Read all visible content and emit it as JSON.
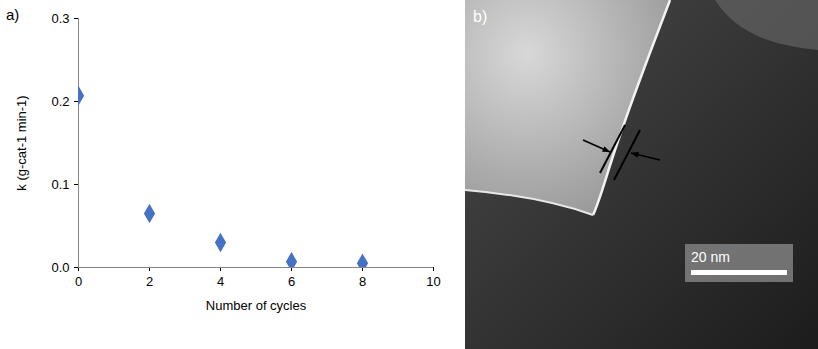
{
  "chart_data": {
    "type": "scatter",
    "title": "a)",
    "x_label": "Number of cycles",
    "y_label": "k (g-cat-1 min-1)",
    "x": [
      0,
      2,
      4,
      6,
      8
    ],
    "values": [
      0.207,
      0.065,
      0.03,
      0.007,
      0.005
    ],
    "color": "#4472c4",
    "marker": "diamond",
    "xlim": [
      0,
      10
    ],
    "xticks": [
      0,
      2,
      4,
      6,
      8,
      10
    ],
    "ylim": [
      0,
      0.3
    ],
    "yticks": [
      {
        "value": 0,
        "label": "0.0"
      },
      {
        "value": 0.1,
        "label": "0.1"
      },
      {
        "value": 0.2,
        "label": "0.2"
      },
      {
        "value": 0.3,
        "label": "0.3"
      }
    ],
    "grid": false
  },
  "image": {
    "label": "b)",
    "scale_bar": "20 nm"
  }
}
